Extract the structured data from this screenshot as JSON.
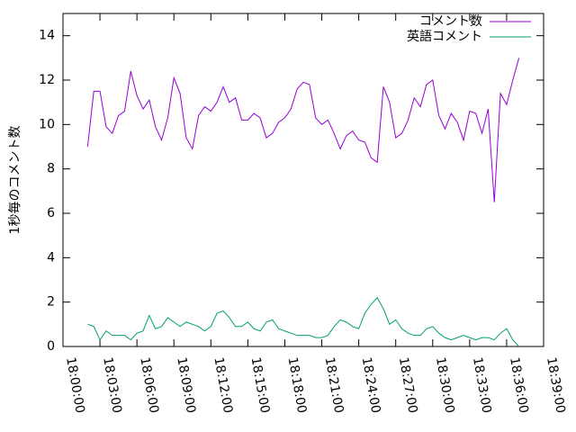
{
  "chart_data": {
    "type": "line",
    "y_label": "1秒毎のコメント数",
    "x": [
      "18:02:00",
      "18:02:30",
      "18:03:00",
      "18:03:30",
      "18:04:00",
      "18:04:30",
      "18:05:00",
      "18:05:30",
      "18:06:00",
      "18:06:30",
      "18:07:00",
      "18:07:30",
      "18:08:00",
      "18:08:30",
      "18:09:00",
      "18:09:30",
      "18:10:00",
      "18:10:30",
      "18:11:00",
      "18:11:30",
      "18:12:00",
      "18:12:30",
      "18:13:00",
      "18:13:30",
      "18:14:00",
      "18:14:30",
      "18:15:00",
      "18:15:30",
      "18:16:00",
      "18:16:30",
      "18:17:00",
      "18:17:30",
      "18:18:00",
      "18:18:30",
      "18:19:00",
      "18:19:30",
      "18:20:00",
      "18:20:30",
      "18:21:00",
      "18:21:30",
      "18:22:00",
      "18:22:30",
      "18:23:00",
      "18:23:30",
      "18:24:00",
      "18:24:30",
      "18:25:00",
      "18:25:30",
      "18:26:00",
      "18:26:30",
      "18:27:00",
      "18:27:30",
      "18:28:00",
      "18:28:30",
      "18:29:00",
      "18:29:30",
      "18:30:00",
      "18:30:30",
      "18:31:00",
      "18:31:30",
      "18:32:00",
      "18:32:30",
      "18:33:00",
      "18:33:30",
      "18:34:00",
      "18:34:30",
      "18:35:00",
      "18:35:30",
      "18:36:00",
      "18:36:30",
      "18:37:00"
    ],
    "series": [
      {
        "name": "コメント数",
        "color": "#9400d3",
        "values": [
          9.0,
          11.5,
          11.5,
          9.9,
          9.6,
          10.4,
          10.6,
          12.4,
          11.3,
          10.7,
          11.1,
          9.9,
          9.3,
          10.3,
          12.1,
          11.4,
          9.4,
          8.9,
          10.4,
          10.8,
          10.6,
          11.0,
          11.7,
          11.0,
          11.2,
          10.2,
          10.2,
          10.5,
          10.3,
          9.4,
          9.6,
          10.1,
          10.3,
          10.7,
          11.6,
          11.9,
          11.8,
          10.3,
          10.0,
          10.2,
          9.6,
          8.9,
          9.5,
          9.7,
          9.3,
          9.2,
          8.5,
          8.3,
          11.7,
          11.0,
          9.4,
          9.6,
          10.2,
          11.2,
          10.8,
          11.8,
          12.0,
          10.4,
          9.8,
          10.5,
          10.1,
          9.3,
          10.6,
          10.5,
          9.6,
          10.7,
          6.5,
          11.4,
          10.9,
          12.0,
          13.0
        ]
      },
      {
        "name": "英語コメント",
        "color": "#009e73",
        "values": [
          1.0,
          0.9,
          0.3,
          0.7,
          0.5,
          0.5,
          0.5,
          0.3,
          0.6,
          0.7,
          1.4,
          0.8,
          0.9,
          1.3,
          1.1,
          0.9,
          1.1,
          1.0,
          0.9,
          0.7,
          0.9,
          1.5,
          1.6,
          1.3,
          0.9,
          0.9,
          1.1,
          0.8,
          0.7,
          1.1,
          1.2,
          0.8,
          0.7,
          0.6,
          0.5,
          0.5,
          0.5,
          0.4,
          0.4,
          0.5,
          0.9,
          1.2,
          1.1,
          0.9,
          0.8,
          1.5,
          1.9,
          2.2,
          1.7,
          1.0,
          1.2,
          0.8,
          0.6,
          0.5,
          0.5,
          0.8,
          0.9,
          0.6,
          0.4,
          0.3,
          0.4,
          0.5,
          0.4,
          0.3,
          0.4,
          0.4,
          0.3,
          0.6,
          0.8,
          0.3,
          0.0
        ]
      }
    ],
    "xlim": [
      "18:00:00",
      "18:39:00"
    ],
    "xticks": [
      "18:00:00",
      "18:03:00",
      "18:06:00",
      "18:09:00",
      "18:12:00",
      "18:15:00",
      "18:18:00",
      "18:21:00",
      "18:24:00",
      "18:27:00",
      "18:30:00",
      "18:33:00",
      "18:36:00",
      "18:39:00"
    ],
    "ylim": [
      0,
      15
    ],
    "yticks": [
      0,
      2,
      4,
      6,
      8,
      10,
      12,
      14
    ],
    "legend": "upper-right"
  }
}
